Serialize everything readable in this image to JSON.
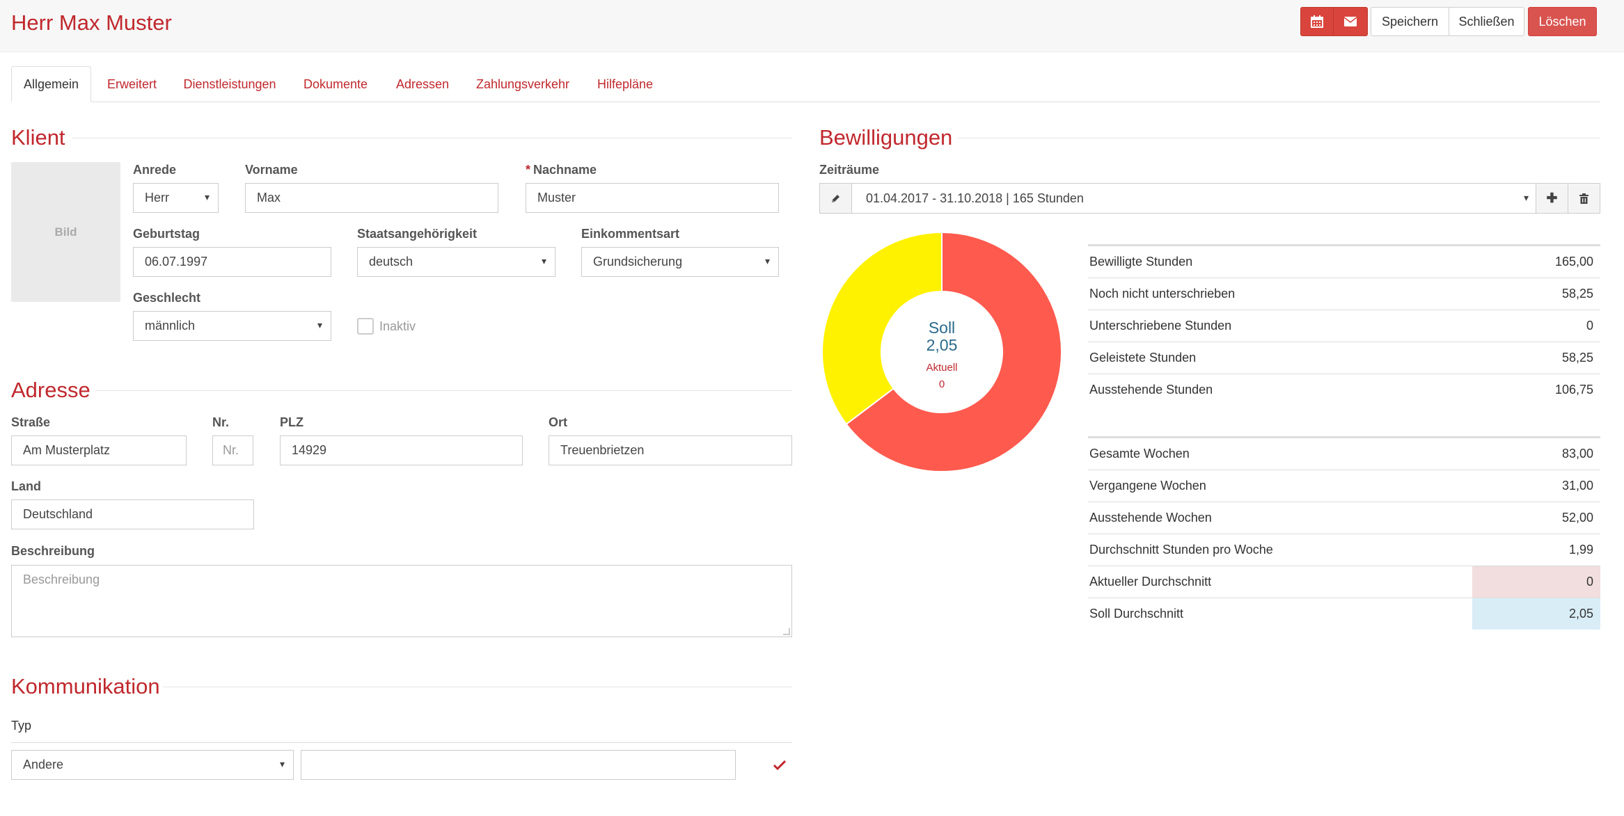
{
  "header": {
    "title": "Herr Max Muster",
    "calendar_icon": "calendar-icon",
    "mail_icon": "envelope-icon",
    "save_label": "Speichern",
    "close_label": "Schließen",
    "delete_label": "Löschen"
  },
  "tabs": [
    {
      "label": "Allgemein",
      "active": true
    },
    {
      "label": "Erweitert"
    },
    {
      "label": "Dienstleistungen"
    },
    {
      "label": "Dokumente"
    },
    {
      "label": "Adressen"
    },
    {
      "label": "Zahlungsverkehr"
    },
    {
      "label": "Hilfepläne"
    }
  ],
  "klient": {
    "title": "Klient",
    "photo_label": "Bild",
    "anrede_label": "Anrede",
    "anrede_value": "Herr",
    "vorname_label": "Vorname",
    "vorname_value": "Max",
    "nachname_required": "*",
    "nachname_label": "Nachname",
    "nachname_value": "Muster",
    "geburtstag_label": "Geburtstag",
    "geburtstag_value": "06.07.1997",
    "staat_label": "Staatsangehörigkeit",
    "staat_value": "deutsch",
    "einkommen_label": "Einkommentsart",
    "einkommen_value": "Grundsicherung",
    "geschlecht_label": "Geschlecht",
    "geschlecht_value": "männlich",
    "inaktiv_label": "Inaktiv"
  },
  "adresse": {
    "title": "Adresse",
    "strasse_label": "Straße",
    "strasse_value": "Am Musterplatz",
    "nr_label": "Nr.",
    "nr_placeholder": "Nr.",
    "plz_label": "PLZ",
    "plz_value": "14929",
    "ort_label": "Ort",
    "ort_value": "Treuenbrietzen",
    "land_label": "Land",
    "land_value": "Deutschland",
    "beschreibung_label": "Beschreibung",
    "beschreibung_placeholder": "Beschreibung"
  },
  "kommunikation": {
    "title": "Kommunikation",
    "typ_label": "Typ",
    "typ_value": "Andere",
    "value": ""
  },
  "bewilligungen": {
    "title": "Bewilligungen",
    "zeitraeume_label": "Zeiträume",
    "period_value": "01.04.2017 - 31.10.2018 | 165 Stunden",
    "edit_icon": "pencil-icon",
    "add_icon": "plus-icon",
    "delete_icon": "trash-icon",
    "donut": {
      "soll_label": "Soll",
      "soll_value": "2,05",
      "aktuell_label": "Aktuell",
      "aktuell_value": "0",
      "segments": [
        {
          "value": 64.7,
          "color": "#ff5a4e"
        },
        {
          "value": 35.3,
          "color": "#fff200"
        }
      ]
    },
    "hours": [
      {
        "label": "Bewilligte Stunden",
        "value": "165,00"
      },
      {
        "label": "Noch nicht unterschrieben",
        "value": "58,25"
      },
      {
        "label": "Unterschriebene Stunden",
        "value": "0"
      },
      {
        "label": "Geleistete Stunden",
        "value": "58,25"
      },
      {
        "label": "Ausstehende Stunden",
        "value": "106,75"
      }
    ],
    "weeks": [
      {
        "label": "Gesamte Wochen",
        "value": "83,00"
      },
      {
        "label": "Vergangene Wochen",
        "value": "31,00"
      },
      {
        "label": "Ausstehende Wochen",
        "value": "52,00"
      },
      {
        "label": "Durchschnitt Stunden pro Woche",
        "value": "1,99"
      },
      {
        "label": "Aktueller Durchschnitt",
        "value": "0",
        "highlight": "#f2dede"
      },
      {
        "label": "Soll Durchschnitt",
        "value": "2,05",
        "highlight": "#d9edf7"
      }
    ]
  },
  "colors": {
    "accent": "#c0282d",
    "button_red": "#d9453d"
  }
}
